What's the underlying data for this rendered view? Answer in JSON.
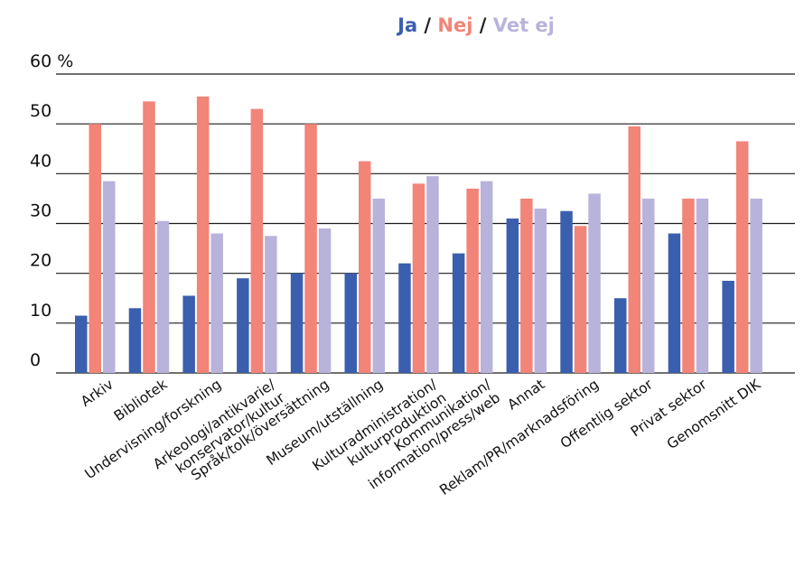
{
  "chart_data": {
    "type": "bar",
    "legend": {
      "placement": "top-center",
      "separator": " / "
    },
    "y_axis": {
      "ylim": [
        0,
        60
      ],
      "ticks": [
        0,
        10,
        20,
        30,
        40,
        50,
        60
      ],
      "tick_labels": [
        "0",
        "10",
        "20",
        "30",
        "40",
        "50",
        "60 %"
      ]
    },
    "grid": true,
    "categories": [
      "Arkiv",
      "Bibliotek",
      "Undervisning/forskning",
      "Arkeologi/antikvarie/ konservator/kultur",
      "Språk/tolk/översättning",
      "Museum/utställning",
      "Kulturadministration/ kulturproduktion",
      "Kommunikation/ information/press/web",
      "Annat",
      "Reklam/PR/marknadsföring",
      "Offentlig sektor",
      "Privat sektor",
      "Genomsnitt DIK"
    ],
    "category_label_lines": [
      [
        "Arkiv"
      ],
      [
        "Bibliotek"
      ],
      [
        "Undervisning/forskning"
      ],
      [
        "Arkeologi/antikvarie/",
        "konservator/kultur"
      ],
      [
        "Språk/tolk/översättning"
      ],
      [
        "Museum/utställning"
      ],
      [
        "Kulturadministration/",
        "kulturproduktion"
      ],
      [
        "Kommunikation/",
        "information/press/web"
      ],
      [
        "Annat"
      ],
      [
        "Reklam/PR/marknadsföring"
      ],
      [
        "Offentlig sektor"
      ],
      [
        "Privat sektor"
      ],
      [
        "Genomsnitt DIK"
      ]
    ],
    "series": [
      {
        "name": "Ja",
        "color": "#3a5fae",
        "values": [
          11.5,
          13,
          15.5,
          19,
          20,
          20,
          22,
          24,
          31,
          32.5,
          15,
          28,
          18.5
        ]
      },
      {
        "name": "Nej",
        "color": "#f28478",
        "values": [
          50,
          54.5,
          55.5,
          53,
          50,
          42.5,
          38,
          37,
          35,
          29.5,
          49.5,
          35,
          46.5
        ]
      },
      {
        "name": "Vet ej",
        "color": "#b8b3db",
        "values": [
          38.5,
          30.5,
          28,
          27.5,
          29,
          35,
          39.5,
          38.5,
          33,
          36,
          35,
          35,
          35
        ]
      }
    ]
  }
}
